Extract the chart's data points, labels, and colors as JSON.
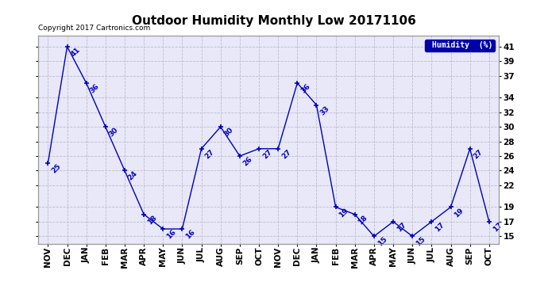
{
  "title": "Outdoor Humidity Monthly Low 20171106",
  "data_points": [
    {
      "month": "NOV",
      "val": 25
    },
    {
      "month": "DEC",
      "val": 41
    },
    {
      "month": "JAN",
      "val": 36
    },
    {
      "month": "FEB",
      "val": 30
    },
    {
      "month": "MAR",
      "val": 24
    },
    {
      "month": "APR",
      "val": 18
    },
    {
      "month": "MAY",
      "val": 16
    },
    {
      "month": "JUN",
      "val": 16
    },
    {
      "month": "JUL",
      "val": 27
    },
    {
      "month": "AUG",
      "val": 30
    },
    {
      "month": "SEP",
      "val": 26
    },
    {
      "month": "OCT",
      "val": 27
    },
    {
      "month": "NOV",
      "val": 27
    },
    {
      "month": "DEC",
      "val": 36
    },
    {
      "month": "JAN",
      "val": 33
    },
    {
      "month": "FEB",
      "val": 19
    },
    {
      "month": "MAR",
      "val": 18
    },
    {
      "month": "APR",
      "val": 15
    },
    {
      "month": "MAY",
      "val": 17
    },
    {
      "month": "JUN",
      "val": 15
    },
    {
      "month": "JUL",
      "val": 17
    },
    {
      "month": "AUG",
      "val": 19
    },
    {
      "month": "SEP",
      "val": 27
    },
    {
      "month": "OCT",
      "val": 17
    }
  ],
  "yticks": [
    15,
    17,
    19,
    22,
    24,
    26,
    28,
    30,
    32,
    34,
    37,
    39,
    41
  ],
  "ymin": 14.0,
  "ymax": 42.5,
  "line_color": "#0000BB",
  "marker_color": "#0000BB",
  "background_color": "#ffffff",
  "plot_bg_color": "#e8e8f8",
  "grid_color": "#bbbbcc",
  "legend_label": "Humidity  (%)",
  "legend_bg": "#0000AA",
  "legend_fg": "#ffffff",
  "copyright_text": "Copyright 2017 Cartronics.com",
  "title_fontsize": 11,
  "label_fontsize": 6.5,
  "tick_fontsize": 7.5,
  "copyright_fontsize": 6.5
}
